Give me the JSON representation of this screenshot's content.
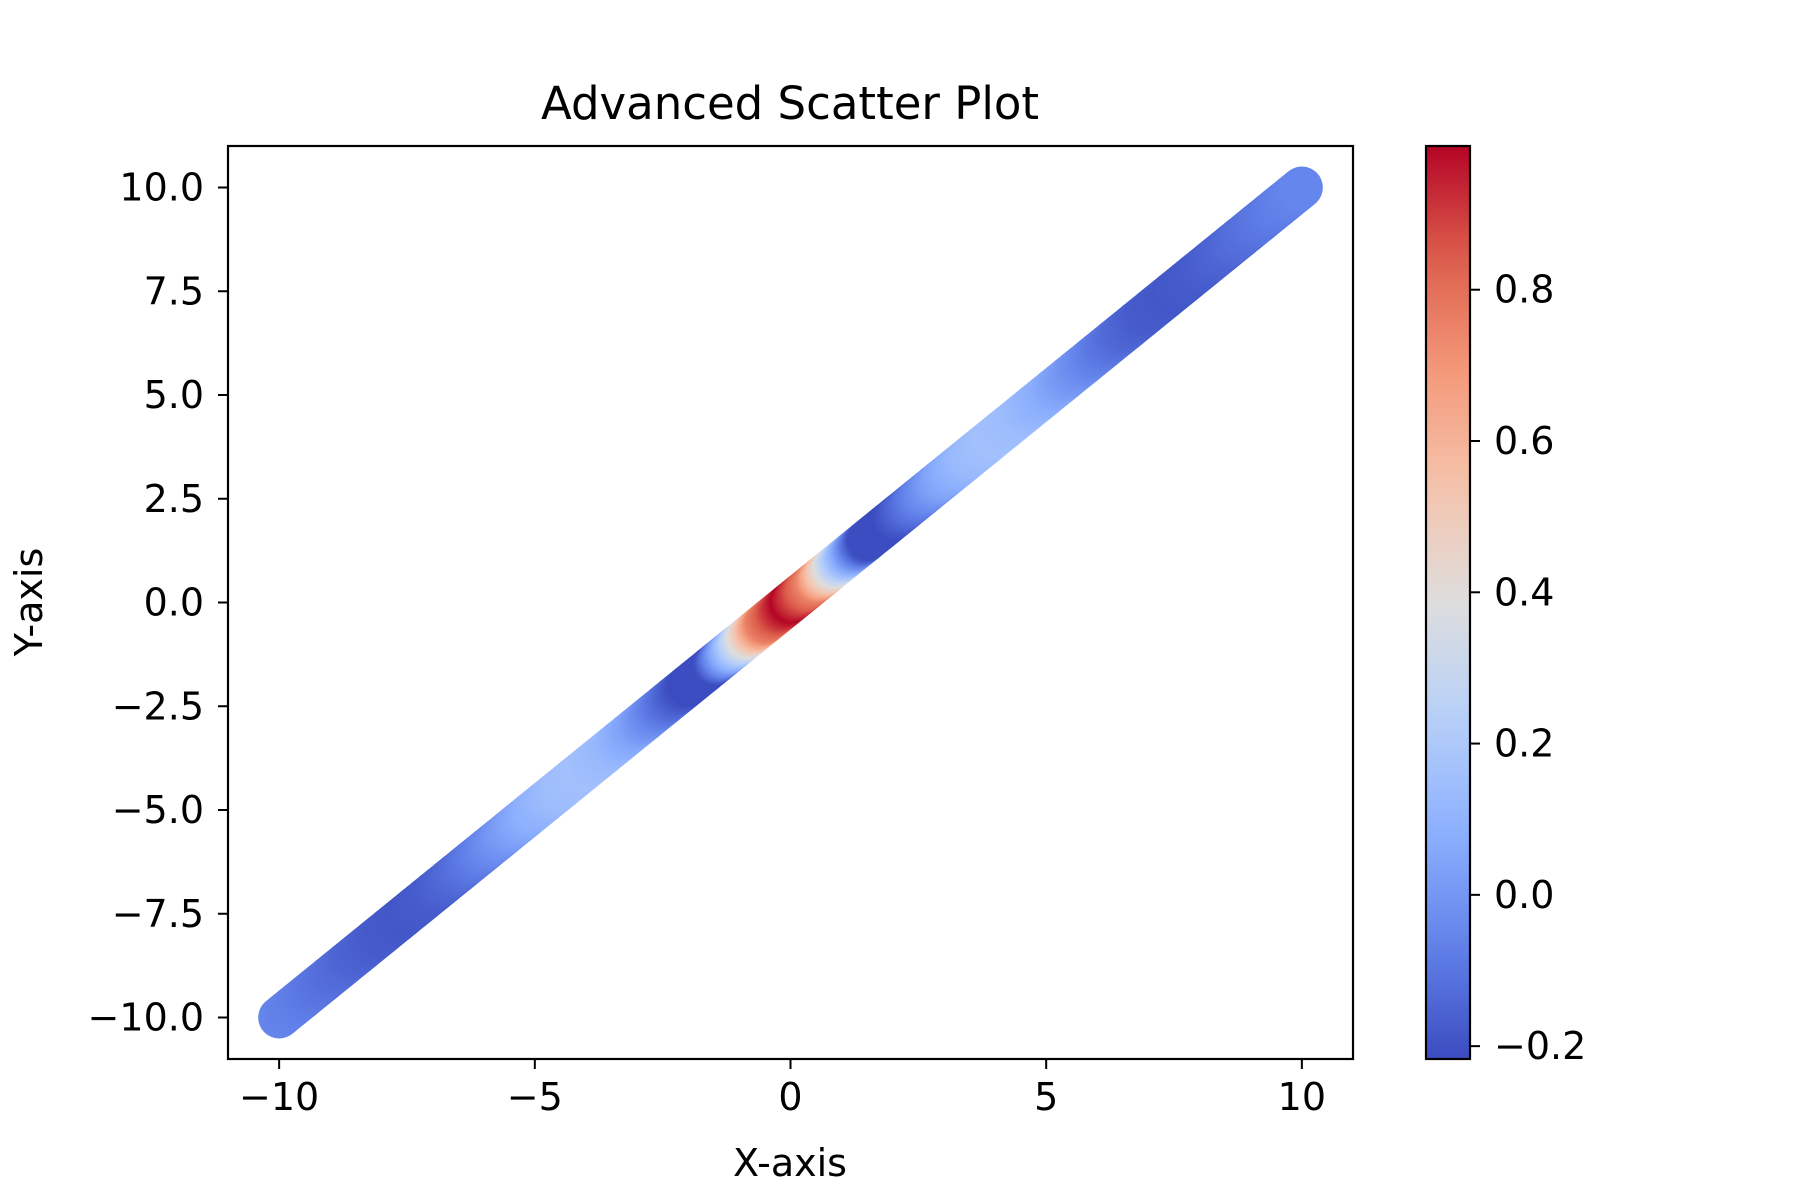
{
  "chart_data": {
    "type": "scatter",
    "title": "Advanced Scatter Plot",
    "xlabel": "X-axis",
    "ylabel": "Y-axis",
    "xlim": [
      -11,
      11
    ],
    "ylim": [
      -11,
      11
    ],
    "xticks": [
      -10,
      -5,
      0,
      5,
      10
    ],
    "xtick_labels": [
      "−10",
      "−5",
      "0",
      "5",
      "10"
    ],
    "yticks": [
      -10,
      -7.5,
      -5,
      -2.5,
      0,
      2.5,
      5,
      7.5,
      10
    ],
    "ytick_labels": [
      "−10.0",
      "−7.5",
      "−5.0",
      "−2.5",
      "0.0",
      "2.5",
      "5.0",
      "7.5",
      "10.0"
    ],
    "x": [
      -10,
      -9.5,
      -9,
      -8.5,
      -8,
      -7.5,
      -7,
      -6.5,
      -6,
      -5.5,
      -5,
      -4.5,
      -4,
      -3.5,
      -3,
      -2.5,
      -2,
      -1.5,
      -1,
      -0.5,
      0,
      0.5,
      1,
      1.5,
      2,
      2.5,
      3,
      3.5,
      4,
      4.5,
      5,
      5.5,
      6,
      6.5,
      7,
      7.5,
      8,
      8.5,
      9,
      9.5,
      10
    ],
    "y": [
      -10,
      -9.5,
      -9,
      -8.5,
      -8,
      -7.5,
      -7,
      -6.5,
      -6,
      -5.5,
      -5,
      -4.5,
      -4,
      -3.5,
      -3,
      -2.5,
      -2,
      -1.5,
      -1,
      -0.5,
      0,
      0.5,
      1,
      1.5,
      2,
      2.5,
      3,
      3.5,
      4,
      4.5,
      5,
      5.5,
      6,
      6.5,
      7,
      7.5,
      8,
      8.5,
      9,
      9.5,
      10
    ],
    "color_values": [
      -0.054,
      -0.082,
      -0.114,
      -0.148,
      -0.175,
      -0.186,
      -0.175,
      -0.134,
      -0.07,
      0.01,
      0.087,
      0.143,
      0.161,
      0.127,
      0.043,
      -0.084,
      -0.217,
      -0.213,
      0.226,
      0.748,
      0.99,
      0.748,
      0.226,
      -0.213,
      -0.217,
      -0.084,
      0.043,
      0.127,
      0.161,
      0.143,
      0.087,
      0.01,
      -0.07,
      -0.134,
      -0.175,
      -0.186,
      -0.175,
      -0.148,
      -0.114,
      -0.082,
      -0.054
    ],
    "colormap": "coolwarm",
    "color_range": [
      -0.217,
      0.99
    ],
    "colorbar": {
      "ticks": [
        -0.2,
        0.0,
        0.2,
        0.4,
        0.6,
        0.8
      ],
      "tick_labels": [
        "−0.2",
        "0.0",
        "0.2",
        "0.4",
        "0.6",
        "0.8"
      ]
    },
    "grid": false,
    "legend": "none"
  }
}
